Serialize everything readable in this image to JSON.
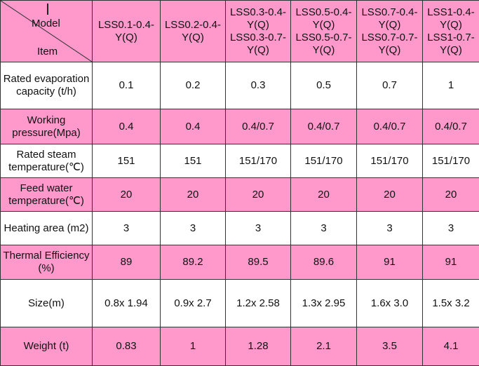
{
  "header": {
    "model_label": "Model",
    "item_label": "Item",
    "models": [
      "LSS0.1-0.4-Y(Q)",
      "LSS0.2-0.4-Y(Q)",
      "LSS0.3-0.4-Y(Q) LSS0.3-0.7-Y(Q)",
      "LSS0.5-0.4-Y(Q) LSS0.5-0.7-Y(Q)",
      "LSS0.7-0.4-Y(Q) LSS0.7-0.7-Y(Q)",
      "LSS1-0.4-Y(Q) LSS1-0.7-Y(Q)"
    ]
  },
  "colors": {
    "pink": "#ff99cc",
    "white": "#ffffff"
  },
  "rows": [
    {
      "label": "Rated evaporation capacity (t/h)",
      "values": [
        "0.1",
        "0.2",
        "0.3",
        "0.5",
        "0.7",
        "1"
      ]
    },
    {
      "label": "Working pressure(Mpa)",
      "values": [
        "0.4",
        "0.4",
        "0.4/0.7",
        "0.4/0.7",
        "0.4/0.7",
        "0.4/0.7"
      ]
    },
    {
      "label": "Rated steam temperature(℃)",
      "values": [
        "151",
        "151",
        "151/170",
        "151/170",
        "151/170",
        "151/170"
      ]
    },
    {
      "label": "Feed water temperature(℃)",
      "values": [
        "20",
        "20",
        "20",
        "20",
        "20",
        "20"
      ]
    },
    {
      "label": "Heating area (m2)",
      "values": [
        "3",
        "3",
        "3",
        "3",
        "3",
        "3"
      ]
    },
    {
      "label": "Thermal Efficiency (%)",
      "values": [
        "89",
        "89.2",
        "89.5",
        "89.6",
        "91",
        "91"
      ]
    },
    {
      "label": "Size(m)",
      "values": [
        "0.8x 1.94",
        "0.9x 2.7",
        "1.2x 2.58",
        "1.3x 2.95",
        "1.6x 3.0",
        "1.5x 3.2"
      ]
    },
    {
      "label": "Weight (t)",
      "values": [
        "0.83",
        "1",
        "1.28",
        "2.1",
        "3.5",
        "4.1"
      ]
    }
  ]
}
